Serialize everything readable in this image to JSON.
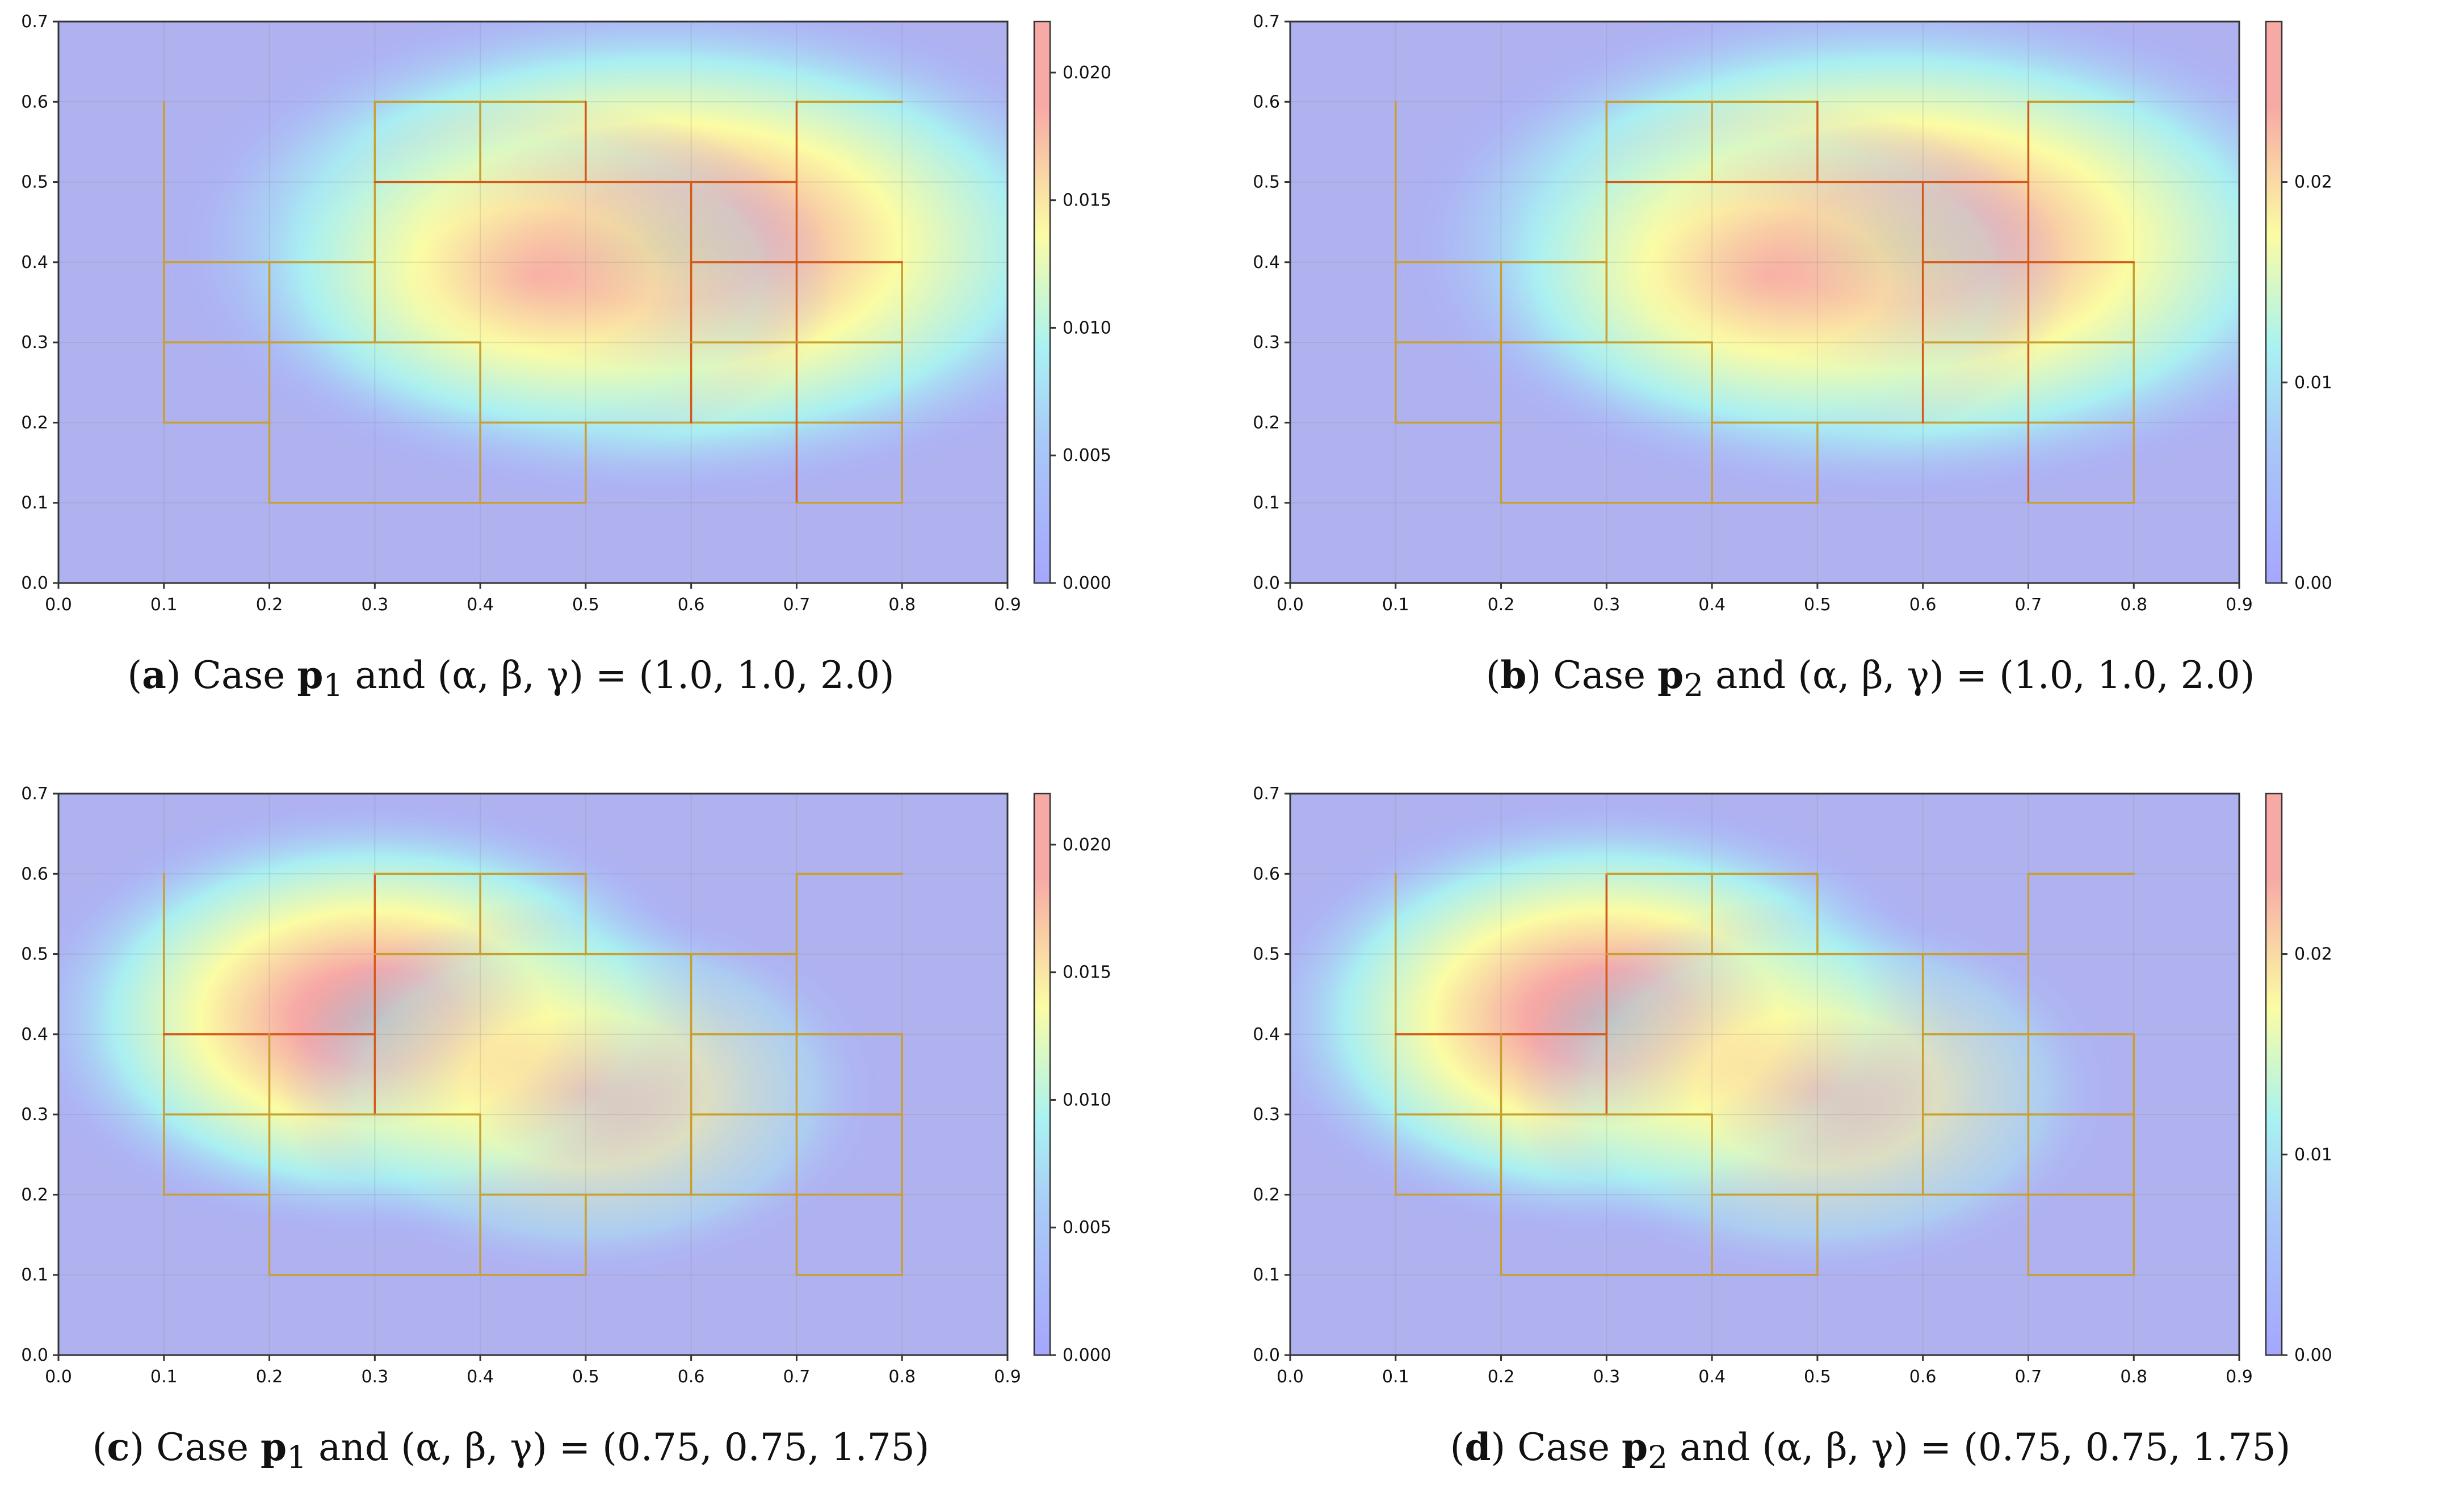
{
  "figure": {
    "x_ticks": [
      "0.0",
      "0.1",
      "0.2",
      "0.3",
      "0.4",
      "0.5",
      "0.6",
      "0.7",
      "0.8",
      "0.9"
    ],
    "y_ticks": [
      "0.0",
      "0.1",
      "0.2",
      "0.3",
      "0.4",
      "0.5",
      "0.6",
      "0.7"
    ],
    "colors": {
      "low": "#a6a6ff",
      "mid_low": "#a9f2f2",
      "mid": "#fbfca4",
      "high": "#f7a9a6",
      "peak": "#cfa8a8",
      "edge_blue": "#b0b2f0",
      "outline": "#c8a030",
      "outline_hot": "#d35a1a"
    }
  },
  "chart_data": [
    {
      "type": "heatmap",
      "panel": "a",
      "caption": {
        "label": "a",
        "case_vector": "p",
        "case_subscript": "1",
        "rest": " and (α, β, γ) = (1.0, 1.0, 2.0)"
      },
      "xlim": [
        0,
        0.9
      ],
      "ylim": [
        0,
        0.7
      ],
      "colorbar": {
        "range": [
          0,
          0.022
        ],
        "ticks": [
          "0.000",
          "0.005",
          "0.010",
          "0.015",
          "0.020"
        ],
        "tick_values": [
          0,
          0.005,
          0.01,
          0.015,
          0.02
        ]
      },
      "hotspots": [
        [
          0.57,
          0.42,
          0.22,
          0.15,
          1.0
        ],
        [
          0.45,
          0.38,
          0.18,
          0.14,
          0.55
        ]
      ]
    },
    {
      "type": "heatmap",
      "panel": "b",
      "caption": {
        "label": "b",
        "case_vector": "p",
        "case_subscript": "2",
        "rest": " and (α, β, γ) = (1.0, 1.0, 2.0)"
      },
      "xlim": [
        0,
        0.9
      ],
      "ylim": [
        0,
        0.7
      ],
      "colorbar": {
        "range": [
          0,
          0.028
        ],
        "ticks": [
          "0.00",
          "0.01",
          "0.02"
        ],
        "tick_values": [
          0,
          0.01,
          0.02
        ]
      },
      "hotspots": [
        [
          0.57,
          0.42,
          0.22,
          0.15,
          1.0
        ],
        [
          0.45,
          0.38,
          0.18,
          0.14,
          0.55
        ]
      ]
    },
    {
      "type": "heatmap",
      "panel": "c",
      "caption": {
        "label": "c",
        "case_vector": "p",
        "case_subscript": "1",
        "rest": " and (α, β, γ) = (0.75, 0.75, 1.75)"
      },
      "xlim": [
        0,
        0.9
      ],
      "ylim": [
        0,
        0.7
      ],
      "colorbar": {
        "range": [
          0,
          0.022
        ],
        "ticks": [
          "0.000",
          "0.005",
          "0.010",
          "0.015",
          "0.020"
        ],
        "tick_values": [
          0,
          0.005,
          0.01,
          0.015,
          0.02
        ]
      },
      "hotspots": [
        [
          0.3,
          0.42,
          0.16,
          0.13,
          1.0
        ],
        [
          0.5,
          0.33,
          0.18,
          0.15,
          0.6
        ]
      ]
    },
    {
      "type": "heatmap",
      "panel": "d",
      "caption": {
        "label": "d",
        "case_vector": "p",
        "case_subscript": "2",
        "rest": " and (α, β, γ) = (0.75, 0.75, 1.75)"
      },
      "xlim": [
        0,
        0.9
      ],
      "ylim": [
        0,
        0.7
      ],
      "colorbar": {
        "range": [
          0,
          0.028
        ],
        "ticks": [
          "0.00",
          "0.01",
          "0.02"
        ],
        "tick_values": [
          0,
          0.01,
          0.02
        ]
      },
      "hotspots": [
        [
          0.3,
          0.42,
          0.16,
          0.13,
          1.0
        ],
        [
          0.5,
          0.33,
          0.18,
          0.15,
          0.6
        ]
      ]
    }
  ],
  "outline_segments": [
    [
      [
        0.1,
        0.6
      ],
      [
        0.1,
        0.2
      ]
    ],
    [
      [
        0.1,
        0.2
      ],
      [
        0.2,
        0.2
      ]
    ],
    [
      [
        0.1,
        0.4
      ],
      [
        0.3,
        0.4
      ]
    ],
    [
      [
        0.1,
        0.3
      ],
      [
        0.3,
        0.3
      ]
    ],
    [
      [
        0.2,
        0.4
      ],
      [
        0.2,
        0.1
      ]
    ],
    [
      [
        0.2,
        0.1
      ],
      [
        0.5,
        0.1
      ]
    ],
    [
      [
        0.3,
        0.6
      ],
      [
        0.3,
        0.3
      ]
    ],
    [
      [
        0.3,
        0.6
      ],
      [
        0.5,
        0.6
      ]
    ],
    [
      [
        0.4,
        0.6
      ],
      [
        0.4,
        0.5
      ]
    ],
    [
      [
        0.5,
        0.6
      ],
      [
        0.5,
        0.5
      ]
    ],
    [
      [
        0.3,
        0.5
      ],
      [
        0.7,
        0.5
      ]
    ],
    [
      [
        0.3,
        0.3
      ],
      [
        0.4,
        0.3
      ]
    ],
    [
      [
        0.4,
        0.3
      ],
      [
        0.4,
        0.1
      ]
    ],
    [
      [
        0.5,
        0.2
      ],
      [
        0.5,
        0.1
      ]
    ],
    [
      [
        0.4,
        0.2
      ],
      [
        0.8,
        0.2
      ]
    ],
    [
      [
        0.6,
        0.5
      ],
      [
        0.6,
        0.2
      ]
    ],
    [
      [
        0.7,
        0.6
      ],
      [
        0.8,
        0.6
      ]
    ],
    [
      [
        0.7,
        0.6
      ],
      [
        0.7,
        0.1
      ]
    ],
    [
      [
        0.7,
        0.1
      ],
      [
        0.8,
        0.1
      ]
    ],
    [
      [
        0.8,
        0.4
      ],
      [
        0.8,
        0.1
      ]
    ],
    [
      [
        0.6,
        0.4
      ],
      [
        0.8,
        0.4
      ]
    ],
    [
      [
        0.6,
        0.3
      ],
      [
        0.8,
        0.3
      ]
    ]
  ]
}
